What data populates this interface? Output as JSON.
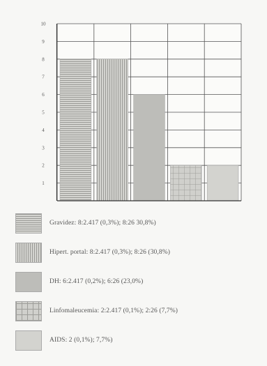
{
  "chart_data": {
    "type": "bar",
    "title": "",
    "xlabel": "",
    "ylabel": "",
    "ylim": [
      0,
      10
    ],
    "yticks": [
      "1",
      "2",
      "3",
      "4",
      "5",
      "6",
      "7",
      "8",
      "9",
      "10"
    ],
    "grid": true,
    "legend_position": "bottom",
    "categories": [
      "Gravidez: 8:2.417 (0,3%); 8:26 30,8%)",
      "Hipert. portal: 8:2.417 (0,3%); 8:26 (30,8%)",
      "DH: 6:2.417 (0,2%); 6:26 (23,0%)",
      "Linfomaleucemia: 2:2.417 (0,1%); 2:26 (7,7%)",
      "AIDS: 2 (0,1%); 7,7%)"
    ],
    "values": [
      8,
      8,
      6,
      2,
      2
    ],
    "patterns": [
      "horizontal-lines",
      "vertical-lines",
      "solid-gray",
      "grid",
      "light-gray"
    ],
    "colors": [
      "#c8c8c4",
      "#c8c8c4",
      "#bdbdb9",
      "#c6c6c2",
      "#d3d3cf"
    ]
  }
}
